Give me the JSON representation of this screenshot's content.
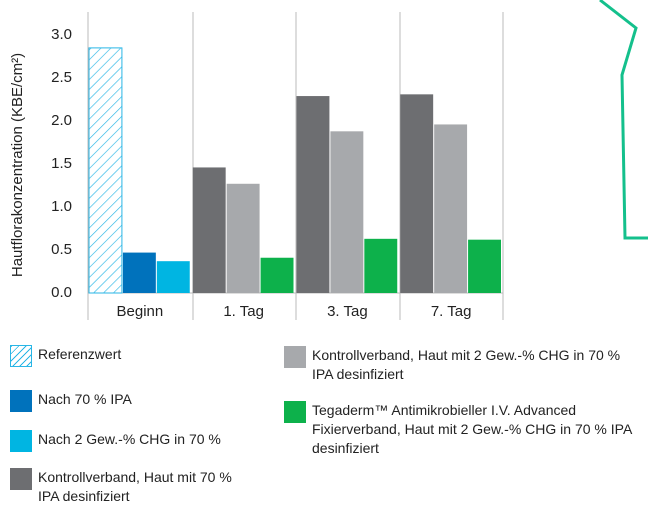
{
  "chart_data": {
    "type": "bar",
    "y_label": "Hautflorakonzentration (KBE/cm²)",
    "categories": [
      "Beginn",
      "1. Tag",
      "3. Tag",
      "7. Tag"
    ],
    "series": [
      {
        "name": "Referenzwert",
        "color": "#29b6e6",
        "pattern": "hatch",
        "values": [
          2.85,
          null,
          null,
          null
        ]
      },
      {
        "name": "Nach 70 % IPA",
        "color": "#0072bc",
        "values": [
          0.47,
          null,
          null,
          null
        ]
      },
      {
        "name": "Nach 2 Gew.-% CHG in 70 %",
        "color": "#00b5e2",
        "values": [
          0.37,
          null,
          null,
          null
        ]
      },
      {
        "name": "Kontrollverband, Haut mit 70 % IPA desinfiziert",
        "color": "#6d6e71",
        "values": [
          null,
          1.46,
          2.29,
          2.31
        ]
      },
      {
        "name": "Kontrollverband, Haut mit 2 Gew.-% CHG in 70 % IPA desinfiziert",
        "color": "#a7a9ac",
        "values": [
          null,
          1.27,
          1.88,
          1.96
        ]
      },
      {
        "name": "Tegaderm™ Antimikrobieller I.V. Advanced Fixierverband, Haut mit 2 Gew.-% CHG in 70 % IPA desinfiziert",
        "color": "#0db14b",
        "values": [
          null,
          0.41,
          0.63,
          0.62
        ]
      }
    ],
    "ylim": [
      0,
      3
    ],
    "yticks": [
      {
        "value": 0,
        "label": "0.0"
      },
      0.5,
      {
        "value": 1,
        "label": "1.0"
      },
      1.5,
      {
        "value": 2,
        "label": "2.0"
      },
      2.5,
      {
        "value": 3,
        "label": "3.0"
      }
    ]
  }
}
